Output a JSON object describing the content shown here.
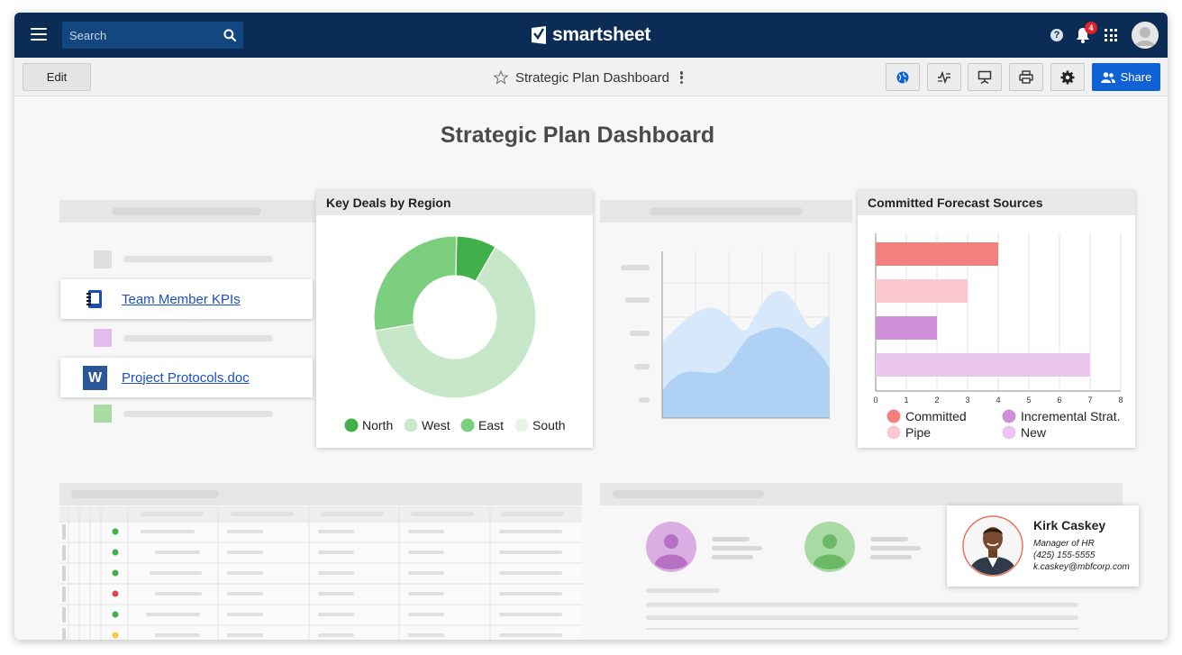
{
  "app": {
    "logo_text": "smartsheet"
  },
  "topnav": {
    "search_placeholder": "Search",
    "notification_count": "4",
    "help_label": "?"
  },
  "toolbar": {
    "edit_label": "Edit",
    "doc_title": "Strategic Plan Dashboard",
    "share_label": "Share"
  },
  "dashboard": {
    "title": "Strategic Plan Dashboard",
    "links": [
      {
        "label": "Team Member KPIs",
        "icon": "notebook-icon"
      },
      {
        "label": "Project Protocols.doc",
        "icon": "word-doc-icon",
        "icon_letter": "W"
      }
    ]
  },
  "chart_data": [
    {
      "type": "pie",
      "title": "Key Deals by Region",
      "series": [
        {
          "name": "North",
          "value": 8,
          "color": "#41b04a"
        },
        {
          "name": "West",
          "value": 64,
          "color": "#c7e8c8"
        },
        {
          "name": "East",
          "value": 28,
          "color": "#7ccf7f"
        },
        {
          "name": "South",
          "value": 0,
          "color": "#e6f5e6"
        }
      ]
    },
    {
      "type": "bar",
      "orientation": "horizontal",
      "title": "Committed Forecast Sources",
      "categories": [
        "Committed",
        "Pipe",
        "Incremental Strat.",
        "New"
      ],
      "values": [
        4,
        3,
        2,
        7
      ],
      "colors": [
        "#f47f7f",
        "#fbc8cf",
        "#cf8fd9",
        "#ebc6ef"
      ],
      "xlim": [
        0,
        8
      ],
      "xticks": [
        "0",
        "1",
        "2",
        "3",
        "4",
        "5",
        "6",
        "7",
        "8"
      ],
      "legend": [
        "Committed",
        "Incremental Strat.",
        "Pipe",
        "New"
      ],
      "legend_colors": [
        "#f47f7f",
        "#cf8fd9",
        "#fbc8cf",
        "#ebc6ef"
      ],
      "grid": true
    }
  ],
  "contact": {
    "name": "Kirk Caskey",
    "title": "Manager of HR",
    "phone": "(425) 155-5555",
    "email": "k.caskey@mbfcorp.com"
  }
}
